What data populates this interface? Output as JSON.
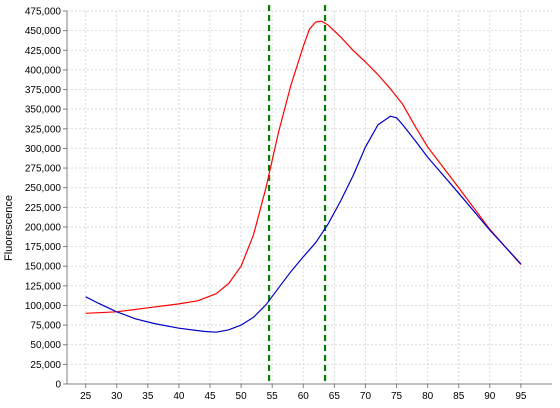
{
  "chart_data": {
    "type": "line",
    "title": "",
    "xlabel": "",
    "ylabel": "Fluorescence",
    "xlim": [
      22,
      100
    ],
    "ylim": [
      0,
      475000
    ],
    "xticks": [
      25,
      30,
      35,
      40,
      45,
      50,
      55,
      60,
      65,
      70,
      75,
      80,
      85,
      90,
      95
    ],
    "yticks": [
      0,
      25000,
      50000,
      75000,
      100000,
      125000,
      150000,
      175000,
      200000,
      225000,
      250000,
      275000,
      300000,
      325000,
      350000,
      375000,
      400000,
      425000,
      450000,
      475000
    ],
    "grid": true,
    "vlines": [
      54.5,
      63.5
    ],
    "series": [
      {
        "color": "#ff0000",
        "x": [
          25,
          30,
          35,
          40,
          43,
          46,
          48,
          50,
          52,
          54,
          56,
          58,
          60,
          61,
          62,
          63,
          64,
          66,
          68,
          70,
          72,
          74,
          76,
          78,
          80,
          85,
          90,
          95
        ],
        "y": [
          90000,
          92000,
          97000,
          102000,
          106000,
          115000,
          128000,
          150000,
          190000,
          250000,
          320000,
          380000,
          430000,
          452000,
          461000,
          462000,
          457000,
          442000,
          425000,
          410000,
          394000,
          376000,
          356000,
          328000,
          302000,
          250000,
          197000,
          152000
        ]
      },
      {
        "color": "#0000cc",
        "x": [
          25,
          27,
          30,
          33,
          36,
          40,
          44,
          46,
          48,
          50,
          52,
          54,
          56,
          58,
          60,
          62,
          64,
          66,
          68,
          70,
          72,
          74,
          75,
          76,
          78,
          80,
          85,
          90,
          95
        ],
        "y": [
          111000,
          103000,
          92000,
          83000,
          77000,
          71000,
          67000,
          66000,
          69000,
          75000,
          85000,
          101000,
          122000,
          143000,
          162000,
          180000,
          204000,
          233000,
          265000,
          302000,
          330000,
          341000,
          339000,
          330000,
          310000,
          289000,
          243000,
          196000,
          153000
        ]
      }
    ]
  },
  "colors": {
    "grid": "#dadada",
    "axis": "#808080",
    "vline": "#008000",
    "plot_bg": "#ffffff"
  }
}
